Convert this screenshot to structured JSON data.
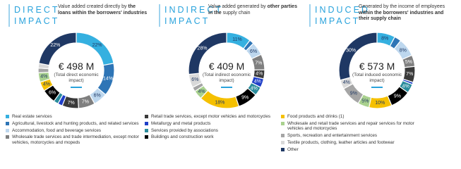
{
  "chart_data": [
    {
      "type": "pie",
      "title": [
        "DIRECT",
        "IMPACT"
      ],
      "description": [
        {
          "text": "Value added created directly by "
        },
        {
          "text": "the loans within the borrowers' industries",
          "bold": true
        }
      ],
      "center_value": "€ 498 M",
      "center_label": "(Total direct economic impact)",
      "values": [
        22,
        14,
        6,
        7,
        7,
        2,
        2,
        6,
        4,
        4,
        2,
        2,
        22
      ],
      "value_labels": [
        "22%",
        "14%",
        "6%",
        "7%",
        "7%",
        null,
        null,
        "6%",
        "4%",
        "4%",
        null,
        null,
        "22%"
      ]
    },
    {
      "type": "pie",
      "title": [
        "INDIRECT",
        "IMPACT"
      ],
      "description": [
        {
          "text": "Value added generated by "
        },
        {
          "text": "other parties in the",
          "bold": true
        },
        {
          "text": " supply chain"
        }
      ],
      "center_value": "€ 409 M",
      "center_label": "(Total indirect economic impact)",
      "values": [
        11,
        2,
        6,
        7,
        4,
        4,
        4,
        9,
        18,
        4,
        2,
        6,
        28
      ],
      "value_labels": [
        "11%",
        null,
        "6%",
        "7%",
        "4%",
        "4%",
        "4%",
        "9%",
        "18%",
        "4%",
        null,
        "6%",
        "28%"
      ]
    },
    {
      "type": "pie",
      "title": [
        "INDUCED",
        "IMPACT"
      ],
      "description": [
        {
          "text": "Generated by the income of employees "
        },
        {
          "text": "within the borrowers' industries and their supply chain",
          "bold": true
        }
      ],
      "center_value": "€ 573 M",
      "center_label": "(Total induced economic impact)",
      "values": [
        8,
        3,
        8,
        5,
        7,
        1,
        4,
        9,
        10,
        5,
        9,
        4,
        30
      ],
      "value_labels": [
        "8%",
        null,
        "8%",
        "5%",
        "7%",
        null,
        "4%",
        "9%",
        "10%",
        "5%",
        "9%",
        "4%",
        "30%"
      ]
    }
  ],
  "legend": {
    "labels": [
      "Real estate services",
      "Agricultural, livestock and hunting products, and related services",
      "Accommodation, food and beverage services",
      "Wholesale trade services and trade intermediation, except motor vehicles, motorcycles and mopeds",
      "Retail trade services, except motor vehicles and motorcycles",
      "Metallurgy and metal products",
      "Services provided by associations",
      "Buildings and construction work",
      "Food products and drinks (1)",
      "Wholesale and retail trade services and repair services for motor vehicles and motorcycles",
      "Sports, recreation and entertainment services",
      "Textile products, clothing, leather articles and footwear",
      "Other"
    ],
    "colors": [
      "#35b0e0",
      "#2e75b6",
      "#bdd7ee",
      "#7f7f7f",
      "#3a3a3a",
      "#1f3fc8",
      "#2a8c9c",
      "#000000",
      "#f5c000",
      "#a9d18e",
      "#a5a5a5",
      "#d9d9d9",
      "#1f3864"
    ]
  }
}
